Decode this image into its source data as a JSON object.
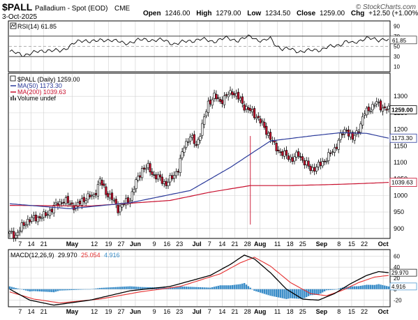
{
  "header": {
    "symbol": "$PALL",
    "name": "Palladium - Spot (EOD)",
    "exchange": "CME",
    "watermark": "© StockCharts.com",
    "date": "3-Oct-2025",
    "quote": {
      "open_label": "Open",
      "open": "1246.00",
      "high_label": "High",
      "high": "1279.00",
      "low_label": "Low",
      "low": "1234.50",
      "close_label": "Close",
      "close": "1259.00",
      "chg_label": "Chg",
      "chg": "+12.50 (+1.00%)"
    },
    "chg_arrow": "▲"
  },
  "colors": {
    "up_candle": "#ffffff",
    "down_candle": "#c8102e",
    "ma50": "#2b3a9a",
    "ma200": "#c8102e",
    "macd": "#000000",
    "signal": "#e53030",
    "hist": "#3a8dc8",
    "grid": "#d0d0d0"
  },
  "rsi_panel": {
    "label": "RSI(14) 61.85",
    "current": "61.85",
    "axis_labels": [
      "90",
      "70",
      "50",
      "30",
      "10"
    ],
    "chart_data": {
      "type": "line",
      "indicator": "RSI(14)",
      "ylim": [
        0,
        100
      ],
      "overbought": 70,
      "oversold": 30,
      "anchors": [
        [
          0,
          40
        ],
        [
          6,
          33
        ],
        [
          12,
          38
        ],
        [
          18,
          43
        ],
        [
          24,
          40
        ],
        [
          30,
          56
        ],
        [
          36,
          62
        ],
        [
          42,
          60
        ],
        [
          48,
          64
        ],
        [
          54,
          55
        ],
        [
          60,
          62
        ],
        [
          66,
          63
        ],
        [
          72,
          62
        ],
        [
          78,
          55
        ],
        [
          84,
          60
        ],
        [
          90,
          64
        ],
        [
          96,
          60
        ],
        [
          102,
          66
        ],
        [
          108,
          62
        ],
        [
          111,
          66
        ],
        [
          114,
          70
        ],
        [
          117,
          63
        ],
        [
          120,
          60
        ],
        [
          123,
          66
        ],
        [
          126,
          52
        ],
        [
          129,
          44
        ],
        [
          132,
          45
        ],
        [
          135,
          42
        ],
        [
          138,
          40
        ],
        [
          141,
          41
        ],
        [
          144,
          43
        ],
        [
          147,
          44
        ],
        [
          150,
          48
        ],
        [
          153,
          50
        ],
        [
          156,
          54
        ],
        [
          159,
          60
        ],
        [
          162,
          55
        ],
        [
          165,
          61
        ],
        [
          168,
          67
        ],
        [
          171,
          64
        ],
        [
          174,
          62
        ],
        [
          177,
          66
        ],
        [
          179,
          61.85
        ]
      ]
    }
  },
  "price_panel": {
    "legend": {
      "title": "$PALL (Daily) 1259.00",
      "ma50": "MA(50) 1173.30",
      "ma200": "MA(200) 1039.63",
      "volume": "Volume undef"
    },
    "axis_labels": [
      "1300",
      "1250",
      "1200",
      "1150",
      "1100",
      "1050",
      "1000",
      "950",
      "900"
    ],
    "price_tags": {
      "close": "1259.00",
      "ma50": "1173.30",
      "ma200": "1039.63"
    },
    "chart_data": {
      "type": "candlestick",
      "series_note": "daily OHLC, Palladium spot",
      "ylim": [
        870,
        1370
      ],
      "close_path": [
        [
          0,
          885
        ],
        [
          3,
          880
        ],
        [
          6,
          905
        ],
        [
          9,
          925
        ],
        [
          12,
          930
        ],
        [
          15,
          935
        ],
        [
          18,
          940
        ],
        [
          21,
          960
        ],
        [
          24,
          975
        ],
        [
          27,
          985
        ],
        [
          30,
          975
        ],
        [
          33,
          965
        ],
        [
          36,
          985
        ],
        [
          39,
          995
        ],
        [
          42,
          1000
        ],
        [
          45,
          1045
        ],
        [
          48,
          1010
        ],
        [
          51,
          990
        ],
        [
          54,
          960
        ],
        [
          57,
          975
        ],
        [
          60,
          990
        ],
        [
          63,
          1040
        ],
        [
          66,
          1080
        ],
        [
          69,
          1085
        ],
        [
          72,
          1060
        ],
        [
          75,
          1050
        ],
        [
          78,
          1035
        ],
        [
          81,
          1055
        ],
        [
          84,
          1080
        ],
        [
          87,
          1150
        ],
        [
          90,
          1180
        ],
        [
          93,
          1150
        ],
        [
          96,
          1210
        ],
        [
          99,
          1280
        ],
        [
          102,
          1300
        ],
        [
          105,
          1285
        ],
        [
          108,
          1300
        ],
        [
          111,
          1315
        ],
        [
          114,
          1295
        ],
        [
          117,
          1270
        ],
        [
          120,
          1255
        ],
        [
          123,
          1240
        ],
        [
          126,
          1215
        ],
        [
          129,
          1185
        ],
        [
          132,
          1150
        ],
        [
          135,
          1130
        ],
        [
          138,
          1120
        ],
        [
          141,
          1110
        ],
        [
          144,
          1125
        ],
        [
          147,
          1100
        ],
        [
          150,
          1080
        ],
        [
          153,
          1085
        ],
        [
          156,
          1100
        ],
        [
          159,
          1120
        ],
        [
          162,
          1140
        ],
        [
          165,
          1180
        ],
        [
          168,
          1200
        ],
        [
          171,
          1170
        ],
        [
          174,
          1200
        ],
        [
          177,
          1250
        ],
        [
          180,
          1265
        ],
        [
          183,
          1280
        ],
        [
          186,
          1265
        ],
        [
          189,
          1259
        ]
      ],
      "ma50": [
        [
          0,
          975
        ],
        [
          30,
          960
        ],
        [
          60,
          978
        ],
        [
          90,
          1015
        ],
        [
          110,
          1085
        ],
        [
          130,
          1165
        ],
        [
          150,
          1180
        ],
        [
          165,
          1190
        ],
        [
          178,
          1188
        ],
        [
          189,
          1173.3
        ]
      ],
      "ma200": [
        [
          0,
          970
        ],
        [
          40,
          968
        ],
        [
          80,
          985
        ],
        [
          100,
          1010
        ],
        [
          120,
          1030
        ],
        [
          140,
          1030
        ],
        [
          160,
          1033
        ],
        [
          175,
          1036
        ],
        [
          189,
          1039.63
        ]
      ]
    }
  },
  "macd_panel": {
    "label": "MACD(12,26,9)",
    "macd_value": "29.970",
    "signal_value": "25.054",
    "hist_value": "4.916",
    "axis_labels": [
      "60",
      "40",
      "20",
      "0",
      "-20"
    ],
    "price_tags": {
      "macd": "29.970",
      "hist": "4.916"
    },
    "chart_data": {
      "type": "line",
      "indicator": "MACD(12,26,9)",
      "ylim": [
        -32,
        72
      ],
      "macd": [
        [
          0,
          0
        ],
        [
          10,
          -20
        ],
        [
          22,
          -29
        ],
        [
          40,
          -20
        ],
        [
          60,
          -3
        ],
        [
          80,
          5
        ],
        [
          100,
          25
        ],
        [
          110,
          45
        ],
        [
          117,
          62
        ],
        [
          122,
          55
        ],
        [
          130,
          30
        ],
        [
          138,
          0
        ],
        [
          146,
          -18
        ],
        [
          154,
          -20
        ],
        [
          162,
          -8
        ],
        [
          170,
          10
        ],
        [
          178,
          25
        ],
        [
          184,
          32
        ],
        [
          189,
          29.97
        ]
      ],
      "signal": [
        [
          0,
          -5
        ],
        [
          12,
          -18
        ],
        [
          25,
          -25
        ],
        [
          45,
          -18
        ],
        [
          65,
          -5
        ],
        [
          85,
          5
        ],
        [
          105,
          28
        ],
        [
          115,
          48
        ],
        [
          122,
          58
        ],
        [
          130,
          42
        ],
        [
          140,
          12
        ],
        [
          150,
          -8
        ],
        [
          158,
          -12
        ],
        [
          166,
          -2
        ],
        [
          174,
          12
        ],
        [
          182,
          22
        ],
        [
          189,
          25.054
        ]
      ]
    }
  },
  "x_axis": {
    "labels": [
      {
        "text": "7",
        "t": 3
      },
      {
        "text": "14",
        "t": 10
      },
      {
        "text": "21",
        "t": 18
      },
      {
        "text": "May",
        "t": 36
      },
      {
        "text": "12",
        "t": 50
      },
      {
        "text": "19",
        "t": 59
      },
      {
        "text": "27",
        "t": 67
      },
      {
        "text": "Jun",
        "t": 76
      },
      {
        "text": "9",
        "t": 88
      },
      {
        "text": "16",
        "t": 96
      },
      {
        "text": "23",
        "t": 104
      },
      {
        "text": "Jul",
        "t": 115
      },
      {
        "text": "7",
        "t": 123
      },
      {
        "text": "14",
        "t": 131
      },
      {
        "text": "21",
        "t": 139
      },
      {
        "text": "28",
        "t": 147
      },
      {
        "text": "Aug",
        "t": 155
      },
      {
        "text": "11",
        "t": 166
      },
      {
        "text": "18",
        "t": 174
      },
      {
        "text": "25",
        "t": 182
      },
      {
        "text": "Sep",
        "t": 194
      },
      {
        "text": "8",
        "t": 205
      },
      {
        "text": "15",
        "t": 213
      },
      {
        "text": "22",
        "t": 221
      },
      {
        "text": "Oct",
        "t": 233
      }
    ]
  }
}
